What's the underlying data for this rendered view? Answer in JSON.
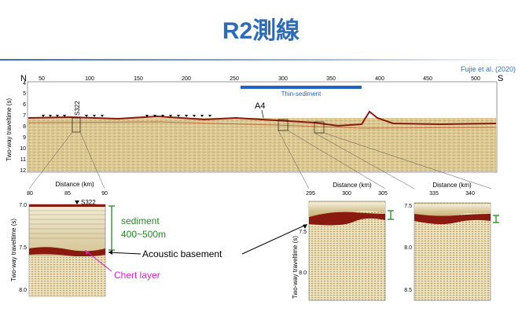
{
  "title": "R2測線",
  "credit": "Fujie et al. (2020)",
  "main_profile": {
    "compass_left": "N",
    "compass_right": "S",
    "ylabel": "Two-way traveltime (s)",
    "x_ticks": [
      "50",
      "100",
      "150",
      "200",
      "250",
      "300",
      "350",
      "400",
      "450",
      "500"
    ],
    "y_ticks": [
      "4",
      "5",
      "6",
      "7",
      "8",
      "9",
      "10",
      "11",
      "12"
    ],
    "station_s322": "S322",
    "station_a4": "A4",
    "thin_sediment_label": "Thin-sediment",
    "distance_label": "Distance (km)"
  },
  "zoom_left": {
    "x_ticks": [
      "80",
      "85",
      "90"
    ],
    "y_ticks": [
      "7.0",
      "7.5",
      "8.0"
    ],
    "ylabel": "Two-way traveltime (s)",
    "station": "S322",
    "sediment_label": "sediment",
    "sediment_thickness": "400~500m",
    "basement_label": "Acoustic basement",
    "chert_label": "Chert layer"
  },
  "zoom_mid": {
    "distance_label": "Distance (km)",
    "x_ticks": [
      "295",
      "300",
      "305"
    ],
    "y_ticks": [
      "7.5",
      "8.0"
    ],
    "ylabel": "Two-way traveltime (s)"
  },
  "zoom_right": {
    "distance_label": "Distance (km)",
    "x_ticks": [
      "335",
      "340"
    ],
    "y_ticks": [
      "7.5",
      "8.0",
      "8.5"
    ]
  },
  "colors": {
    "title": "#2e6bb7",
    "sediment": "#1f8a1f",
    "chert": "#e020c8",
    "thin_sediment_bar": "#1e64c8",
    "seismic_bg": "#d9c48f",
    "basement": "#8a1a10"
  }
}
